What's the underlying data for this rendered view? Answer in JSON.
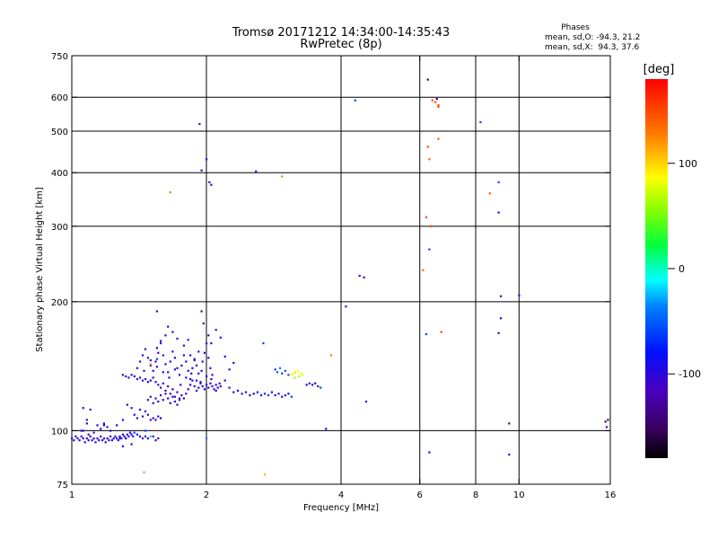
{
  "chart_data": {
    "type": "scatter",
    "title": "Tromsø 20171212 14:34:00-14:35:43",
    "subtitle": "RwPretec (8p)",
    "xlabel": "Frequency [MHz]",
    "ylabel": "Stationary phase Virtual Height [km]",
    "xscale": "log",
    "yscale": "log",
    "xlim": [
      1,
      16
    ],
    "ylim": [
      75,
      750
    ],
    "xticks": [
      1,
      2,
      4,
      6,
      8,
      10,
      16
    ],
    "yticks": [
      75,
      100,
      200,
      300,
      400,
      500,
      600,
      750
    ],
    "x_gridlines": [
      2,
      4,
      6,
      8,
      10
    ],
    "y_gridlines": [
      100,
      200,
      300,
      400,
      500,
      600
    ],
    "legend": {
      "heading": "Phases",
      "line1": "mean, sd,O: -94.3, 21.2",
      "line2": "mean, sd,X:  94.3, 37.6"
    },
    "colorbar": {
      "label": "[deg]",
      "range": [
        -180,
        180
      ],
      "ticks": [
        100,
        0,
        -100
      ]
    },
    "points": [
      [
        1.0,
        96,
        -100
      ],
      [
        1.01,
        95,
        -100
      ],
      [
        1.02,
        97,
        -105
      ],
      [
        1.03,
        96,
        -100
      ],
      [
        1.04,
        95,
        -110
      ],
      [
        1.05,
        97,
        -100
      ],
      [
        1.06,
        96,
        -95
      ],
      [
        1.07,
        94,
        -100
      ],
      [
        1.08,
        96,
        -105
      ],
      [
        1.09,
        95,
        -100
      ],
      [
        1.1,
        97,
        -110
      ],
      [
        1.11,
        95,
        -100
      ],
      [
        1.12,
        96,
        -95
      ],
      [
        1.13,
        94,
        -100
      ],
      [
        1.14,
        96,
        -105
      ],
      [
        1.15,
        95,
        -100
      ],
      [
        1.16,
        97,
        -110
      ],
      [
        1.17,
        95,
        -100
      ],
      [
        1.18,
        96,
        -95
      ],
      [
        1.19,
        94,
        -100
      ],
      [
        1.2,
        96,
        -105
      ],
      [
        1.21,
        95,
        -100
      ],
      [
        1.22,
        97,
        -110
      ],
      [
        1.23,
        95,
        -100
      ],
      [
        1.24,
        96,
        -95
      ],
      [
        1.25,
        97,
        -100
      ],
      [
        1.26,
        96,
        -105
      ],
      [
        1.27,
        95,
        -100
      ],
      [
        1.28,
        97,
        -110
      ],
      [
        1.29,
        96,
        -100
      ],
      [
        1.3,
        98,
        -95
      ],
      [
        1.31,
        97,
        -100
      ],
      [
        1.32,
        96,
        -105
      ],
      [
        1.33,
        98,
        -100
      ],
      [
        1.34,
        97,
        -110
      ],
      [
        1.35,
        99,
        -100
      ],
      [
        1.36,
        98,
        -95
      ],
      [
        1.37,
        97,
        -70
      ],
      [
        1.38,
        99,
        -60
      ],
      [
        1.4,
        98,
        -80
      ],
      [
        1.42,
        97,
        -100
      ],
      [
        1.44,
        96,
        -95
      ],
      [
        1.46,
        97,
        -105
      ],
      [
        1.48,
        96,
        -100
      ],
      [
        1.52,
        97,
        -110
      ],
      [
        1.05,
        100,
        -100
      ],
      [
        1.06,
        113,
        -105
      ],
      [
        1.08,
        106,
        -100
      ],
      [
        1.1,
        112,
        -110
      ],
      [
        1.12,
        99,
        -100
      ],
      [
        1.14,
        103,
        -95
      ],
      [
        1.16,
        101,
        -100
      ],
      [
        1.18,
        104,
        -105
      ],
      [
        1.2,
        102,
        -100
      ],
      [
        1.22,
        100,
        -110
      ],
      [
        1.26,
        103,
        -100
      ],
      [
        1.3,
        106,
        -95
      ],
      [
        1.33,
        115,
        -100
      ],
      [
        1.36,
        113,
        -105
      ],
      [
        1.38,
        109,
        -100
      ],
      [
        1.4,
        107,
        -110
      ],
      [
        1.42,
        112,
        -100
      ],
      [
        1.44,
        108,
        -95
      ],
      [
        1.46,
        111,
        -100
      ],
      [
        1.48,
        109,
        -105
      ],
      [
        1.3,
        135,
        -105
      ],
      [
        1.32,
        134,
        -100
      ],
      [
        1.34,
        133,
        -110
      ],
      [
        1.36,
        135,
        -100
      ],
      [
        1.38,
        134,
        -95
      ],
      [
        1.4,
        132,
        -100
      ],
      [
        1.42,
        133,
        -105
      ],
      [
        1.44,
        131,
        -100
      ],
      [
        1.46,
        132,
        -110
      ],
      [
        1.48,
        130,
        -100
      ],
      [
        1.5,
        131,
        -95
      ],
      [
        1.52,
        133,
        -100
      ],
      [
        1.54,
        130,
        -105
      ],
      [
        1.56,
        128,
        -100
      ],
      [
        1.58,
        126,
        -110
      ],
      [
        1.6,
        129,
        -100
      ],
      [
        1.62,
        124,
        -95
      ],
      [
        1.64,
        127,
        -100
      ],
      [
        1.66,
        122,
        -105
      ],
      [
        1.68,
        125,
        -100
      ],
      [
        1.7,
        120,
        -110
      ],
      [
        1.72,
        123,
        -100
      ],
      [
        1.74,
        118,
        -95
      ],
      [
        1.76,
        121,
        -100
      ],
      [
        1.78,
        119,
        -105
      ],
      [
        1.8,
        122,
        -100
      ],
      [
        1.82,
        125,
        -110
      ],
      [
        1.84,
        128,
        -100
      ],
      [
        1.86,
        131,
        -95
      ],
      [
        1.88,
        127,
        -100
      ],
      [
        1.9,
        124,
        -105
      ],
      [
        1.92,
        126,
        -100
      ],
      [
        1.94,
        129,
        -110
      ],
      [
        1.96,
        127,
        -100
      ],
      [
        1.98,
        125,
        -95
      ],
      [
        2.0,
        128,
        -100
      ],
      [
        2.02,
        126,
        -105
      ],
      [
        2.04,
        129,
        -100
      ],
      [
        2.06,
        127,
        -110
      ],
      [
        2.08,
        125,
        -100
      ],
      [
        2.1,
        128,
        -95
      ],
      [
        2.12,
        126,
        -100
      ],
      [
        2.14,
        129,
        -105
      ],
      [
        1.4,
        140,
        -100
      ],
      [
        1.42,
        145,
        -105
      ],
      [
        1.44,
        150,
        -100
      ],
      [
        1.46,
        155,
        -110
      ],
      [
        1.48,
        148,
        -100
      ],
      [
        1.5,
        142,
        -95
      ],
      [
        1.52,
        138,
        -100
      ],
      [
        1.54,
        145,
        -105
      ],
      [
        1.56,
        152,
        -100
      ],
      [
        1.58,
        160,
        -110
      ],
      [
        1.6,
        150,
        -100
      ],
      [
        1.62,
        143,
        -95
      ],
      [
        1.64,
        137,
        -100
      ],
      [
        1.66,
        145,
        -105
      ],
      [
        1.68,
        153,
        -100
      ],
      [
        1.7,
        148,
        -110
      ],
      [
        1.72,
        140,
        -100
      ],
      [
        1.74,
        135,
        -95
      ],
      [
        1.76,
        142,
        -100
      ],
      [
        1.78,
        150,
        -105
      ],
      [
        1.8,
        145,
        -100
      ],
      [
        1.82,
        138,
        -110
      ],
      [
        1.84,
        132,
        -100
      ],
      [
        1.86,
        140,
        -95
      ],
      [
        1.88,
        147,
        -100
      ],
      [
        1.9,
        142,
        -105
      ],
      [
        1.92,
        136,
        -100
      ],
      [
        1.94,
        130,
        -110
      ],
      [
        1.96,
        145,
        -100
      ],
      [
        1.98,
        152,
        -95
      ],
      [
        2.0,
        160,
        -100
      ],
      [
        2.02,
        148,
        -105
      ],
      [
        2.04,
        140,
        -100
      ],
      [
        2.06,
        135,
        -110
      ],
      [
        1.45,
        138,
        -105
      ],
      [
        1.5,
        146,
        -110
      ],
      [
        1.55,
        141,
        -100
      ],
      [
        1.6,
        137,
        -95
      ],
      [
        1.65,
        133,
        -100
      ],
      [
        1.7,
        139,
        -105
      ],
      [
        1.75,
        128,
        -100
      ],
      [
        1.8,
        133,
        -110
      ],
      [
        1.85,
        136,
        -100
      ],
      [
        1.9,
        131,
        -95
      ],
      [
        1.95,
        138,
        -100
      ],
      [
        2.0,
        134,
        -105
      ],
      [
        1.48,
        118,
        -100
      ],
      [
        1.5,
        120,
        -110
      ],
      [
        1.52,
        116,
        -100
      ],
      [
        1.54,
        119,
        -95
      ],
      [
        1.56,
        117,
        -100
      ],
      [
        1.58,
        121,
        -105
      ],
      [
        1.6,
        118,
        -100
      ],
      [
        1.62,
        122,
        -110
      ],
      [
        1.64,
        119,
        -100
      ],
      [
        1.66,
        116,
        -95
      ],
      [
        1.68,
        120,
        -100
      ],
      [
        1.7,
        117,
        -105
      ],
      [
        1.72,
        115,
        -100
      ],
      [
        1.74,
        119,
        -110
      ],
      [
        1.5,
        106,
        -100
      ],
      [
        1.52,
        107,
        -105
      ],
      [
        1.54,
        106,
        -100
      ],
      [
        1.56,
        108,
        -110
      ],
      [
        1.58,
        107,
        -100
      ],
      [
        1.55,
        156,
        -100
      ],
      [
        1.58,
        162,
        -110
      ],
      [
        1.62,
        167,
        -100
      ],
      [
        1.64,
        175,
        -105
      ],
      [
        1.68,
        170,
        -100
      ],
      [
        1.72,
        164,
        -95
      ],
      [
        1.78,
        158,
        -100
      ],
      [
        1.82,
        163,
        -110
      ],
      [
        1.84,
        150,
        -100
      ],
      [
        1.88,
        146,
        -105
      ],
      [
        1.92,
        153,
        -100
      ],
      [
        1.95,
        190,
        -110
      ],
      [
        1.97,
        178,
        -100
      ],
      [
        2.02,
        167,
        -105
      ],
      [
        2.05,
        160,
        -100
      ],
      [
        2.1,
        172,
        -110
      ],
      [
        2.15,
        165,
        -100
      ],
      [
        2.2,
        149,
        -95
      ],
      [
        2.25,
        139,
        -100
      ],
      [
        2.3,
        144,
        -105
      ],
      [
        2.05,
        132,
        -110
      ],
      [
        2.1,
        124,
        -100
      ],
      [
        2.15,
        127,
        -105
      ],
      [
        2.2,
        131,
        -100
      ],
      [
        2.25,
        126,
        -110
      ],
      [
        2.3,
        123,
        -100
      ],
      [
        2.35,
        124,
        -95
      ],
      [
        2.4,
        122,
        -100
      ],
      [
        2.45,
        123,
        -105
      ],
      [
        2.5,
        121,
        -100
      ],
      [
        2.55,
        122,
        -90
      ],
      [
        2.6,
        123,
        -80
      ],
      [
        2.65,
        121,
        -100
      ],
      [
        2.7,
        122,
        -70
      ],
      [
        2.75,
        121,
        -60
      ],
      [
        2.8,
        123,
        -100
      ],
      [
        2.85,
        121,
        -95
      ],
      [
        2.9,
        122,
        -100
      ],
      [
        2.95,
        120,
        -105
      ],
      [
        3.0,
        121,
        -100
      ],
      [
        3.05,
        122,
        -80
      ],
      [
        3.1,
        120,
        -60
      ],
      [
        2.85,
        139,
        -60
      ],
      [
        2.88,
        137,
        -50
      ],
      [
        2.92,
        140,
        -40
      ],
      [
        2.95,
        136,
        -60
      ],
      [
        3.0,
        138,
        -50
      ],
      [
        3.05,
        135,
        -60
      ],
      [
        3.1,
        135,
        80
      ],
      [
        3.13,
        136,
        90
      ],
      [
        3.16,
        137,
        95
      ],
      [
        3.2,
        138,
        85
      ],
      [
        3.25,
        136,
        90
      ],
      [
        3.28,
        135,
        80
      ],
      [
        3.15,
        133,
        60
      ],
      [
        3.22,
        134,
        70
      ],
      [
        3.35,
        128,
        -90
      ],
      [
        3.4,
        129,
        -100
      ],
      [
        3.45,
        128,
        -95
      ],
      [
        3.5,
        129,
        -105
      ],
      [
        3.55,
        127,
        -100
      ],
      [
        3.6,
        126,
        -60
      ],
      [
        1.06,
        100,
        -110
      ],
      [
        1.08,
        104,
        -100
      ],
      [
        1.09,
        98,
        -95
      ],
      [
        1.18,
        103,
        -100
      ],
      [
        1.28,
        96,
        -80
      ],
      [
        1.3,
        92,
        -100
      ],
      [
        1.32,
        96,
        -90
      ],
      [
        1.36,
        93,
        -100
      ],
      [
        1.46,
        100,
        -60
      ],
      [
        1.5,
        97,
        -20
      ],
      [
        1.54,
        95,
        -100
      ],
      [
        1.56,
        96,
        -120
      ],
      [
        1.5,
        143,
        120
      ],
      [
        1.55,
        147,
        -60
      ],
      [
        1.66,
        360,
        130
      ],
      [
        2.03,
        380,
        -110
      ],
      [
        2.05,
        375,
        -100
      ],
      [
        1.95,
        405,
        -100
      ],
      [
        2.0,
        430,
        -100
      ],
      [
        1.93,
        520,
        -110
      ],
      [
        2.58,
        403,
        -100
      ],
      [
        2.95,
        392,
        130
      ],
      [
        2.68,
        160,
        -60
      ],
      [
        2.7,
        79,
        110
      ],
      [
        3.7,
        101,
        -110
      ],
      [
        3.8,
        150,
        130
      ],
      [
        4.1,
        195,
        -110
      ],
      [
        4.3,
        590,
        -60
      ],
      [
        4.4,
        230,
        -110
      ],
      [
        4.5,
        228,
        -110
      ],
      [
        4.55,
        117,
        -110
      ],
      [
        1.45,
        80,
        120
      ],
      [
        2.0,
        96,
        -40
      ],
      [
        1.55,
        190,
        -110
      ],
      [
        6.1,
        237,
        140
      ],
      [
        6.2,
        315,
        150
      ],
      [
        6.25,
        460,
        150
      ],
      [
        6.3,
        430,
        140
      ],
      [
        6.35,
        300,
        150
      ],
      [
        6.2,
        168,
        -60
      ],
      [
        6.3,
        265,
        -60
      ],
      [
        6.4,
        590,
        150
      ],
      [
        6.5,
        585,
        150
      ],
      [
        6.6,
        575,
        150
      ],
      [
        6.6,
        570,
        150
      ],
      [
        6.55,
        595,
        -140
      ],
      [
        6.6,
        480,
        140
      ],
      [
        6.25,
        660,
        -150
      ],
      [
        6.3,
        89,
        -110
      ],
      [
        6.7,
        170,
        150
      ],
      [
        8.2,
        525,
        -60
      ],
      [
        8.6,
        358,
        140
      ],
      [
        9.0,
        380,
        -60
      ],
      [
        9.0,
        323,
        -80
      ],
      [
        9.1,
        206,
        -110
      ],
      [
        9.1,
        183,
        -130
      ],
      [
        9.0,
        169,
        -120
      ],
      [
        9.5,
        104,
        -130
      ],
      [
        9.5,
        88,
        -110
      ],
      [
        10.0,
        207,
        -100
      ],
      [
        15.6,
        105,
        -140
      ],
      [
        15.8,
        106,
        -150
      ],
      [
        15.7,
        102,
        -130
      ]
    ]
  }
}
